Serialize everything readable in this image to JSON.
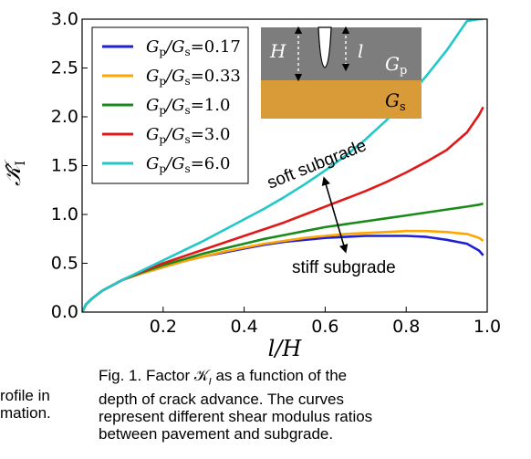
{
  "chart_data": {
    "type": "line",
    "xlabel": "l/H",
    "ylabel": "K̂_I",
    "xlim": [
      0,
      1.0
    ],
    "ylim": [
      0,
      3.0
    ],
    "x_ticks": [
      "0.2",
      "0.4",
      "0.6",
      "0.8",
      "1.0"
    ],
    "x_tick_values": [
      0.2,
      0.4,
      0.6,
      0.8,
      1.0
    ],
    "y_ticks": [
      "0.0",
      "0.5",
      "1.0",
      "1.5",
      "2.0",
      "2.5",
      "3.0"
    ],
    "y_tick_values": [
      0,
      0.5,
      1.0,
      1.5,
      2.0,
      2.5,
      3.0
    ],
    "legend_position": "top-left",
    "x": [
      0.0,
      0.01,
      0.025,
      0.05,
      0.1,
      0.15,
      0.2,
      0.25,
      0.3,
      0.35,
      0.4,
      0.45,
      0.5,
      0.55,
      0.6,
      0.65,
      0.7,
      0.75,
      0.8,
      0.85,
      0.9,
      0.95,
      0.98,
      0.99
    ],
    "series": [
      {
        "name": "Gp/Gs=0.17",
        "color": "#1f1fd6",
        "values": [
          0.0,
          0.08,
          0.14,
          0.22,
          0.33,
          0.4,
          0.46,
          0.52,
          0.57,
          0.61,
          0.65,
          0.69,
          0.72,
          0.74,
          0.76,
          0.77,
          0.78,
          0.78,
          0.78,
          0.77,
          0.74,
          0.7,
          0.63,
          0.58
        ]
      },
      {
        "name": "Gp/Gs=0.33",
        "color": "#ffa500",
        "values": [
          0.0,
          0.08,
          0.14,
          0.22,
          0.33,
          0.4,
          0.46,
          0.52,
          0.57,
          0.62,
          0.66,
          0.7,
          0.73,
          0.76,
          0.78,
          0.8,
          0.81,
          0.82,
          0.83,
          0.83,
          0.82,
          0.8,
          0.76,
          0.73
        ]
      },
      {
        "name": "Gp/Gs=1.0",
        "color": "#1a8a1a",
        "values": [
          0.0,
          0.08,
          0.14,
          0.22,
          0.33,
          0.41,
          0.48,
          0.54,
          0.6,
          0.65,
          0.7,
          0.75,
          0.79,
          0.83,
          0.87,
          0.9,
          0.93,
          0.96,
          0.99,
          1.02,
          1.05,
          1.08,
          1.1,
          1.11
        ]
      },
      {
        "name": "Gp/Gs=3.0",
        "color": "#e01818",
        "values": [
          0.0,
          0.08,
          0.14,
          0.22,
          0.33,
          0.42,
          0.5,
          0.57,
          0.64,
          0.71,
          0.78,
          0.85,
          0.92,
          1.0,
          1.08,
          1.16,
          1.24,
          1.33,
          1.43,
          1.54,
          1.66,
          1.84,
          2.02,
          2.1
        ]
      },
      {
        "name": "Gp/Gs=6.0",
        "color": "#20c8c8",
        "values": [
          0.0,
          0.08,
          0.14,
          0.22,
          0.33,
          0.43,
          0.53,
          0.63,
          0.73,
          0.84,
          0.95,
          1.06,
          1.18,
          1.31,
          1.45,
          1.6,
          1.77,
          1.96,
          2.18,
          2.42,
          2.68,
          2.98,
          3.0,
          3.0
        ]
      }
    ],
    "annotations": {
      "soft": "soft subgrade",
      "stiff": "stiff subgrade"
    },
    "inset": {
      "H": "H",
      "l": "l",
      "Gp": "G",
      "Gp_sub": "p",
      "Gs": "G",
      "Gs_sub": "s"
    }
  },
  "legend_labels": [
    {
      "a": "G",
      "as": "p",
      "b": "/G",
      "bs": "s",
      "eq": "=0.17"
    },
    {
      "a": "G",
      "as": "p",
      "b": "/G",
      "bs": "s",
      "eq": "=0.33"
    },
    {
      "a": "G",
      "as": "p",
      "b": "/G",
      "bs": "s",
      "eq": "=1.0"
    },
    {
      "a": "G",
      "as": "p",
      "b": "/G",
      "bs": "s",
      "eq": "=3.0"
    },
    {
      "a": "G",
      "as": "p",
      "b": "/G",
      "bs": "s",
      "eq": "=6.0"
    }
  ],
  "caption": {
    "line1": "Fig. 1. Factor 𝒦",
    "line1_sub": "I",
    "line1_rest": " as a function of the",
    "line2": "depth of crack advance. The curves",
    "line3": "represent different shear modulus ratios",
    "line4": "between pavement and subgrade."
  },
  "left_fragment": {
    "line1": "rofile in",
    "line2": "mation."
  }
}
